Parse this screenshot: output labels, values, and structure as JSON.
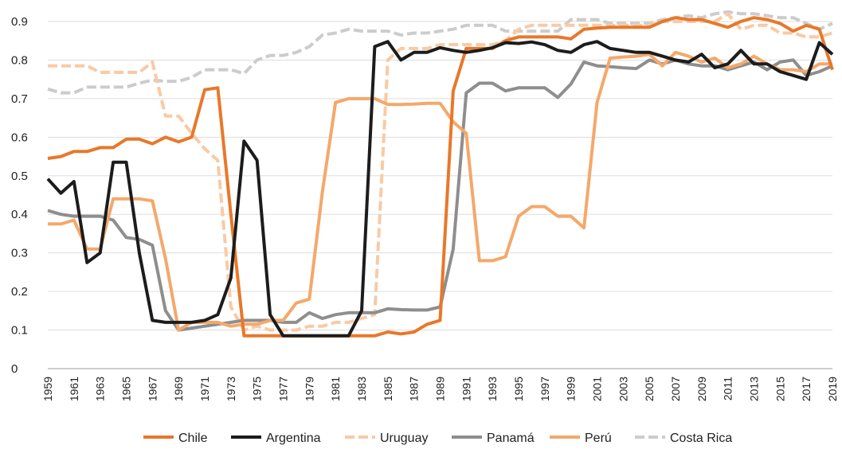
{
  "chart_data": {
    "type": "line",
    "title": "",
    "xlabel": "",
    "ylabel": "",
    "ylim": [
      0,
      0.9
    ],
    "yticks": [
      "0",
      "0.1",
      "0.2",
      "0.3",
      "0.4",
      "0.5",
      "0.6",
      "0.7",
      "0.8",
      "0.9"
    ],
    "xticks": [
      "1959",
      "1961",
      "1963",
      "1965",
      "1967",
      "1969",
      "1971",
      "1973",
      "1975",
      "1977",
      "1979",
      "1981",
      "1983",
      "1985",
      "1987",
      "1989",
      "1991",
      "1993",
      "1995",
      "1997",
      "1999",
      "2001",
      "2003",
      "2005",
      "2007",
      "2009",
      "2011",
      "2013",
      "2015",
      "2017",
      "2019"
    ],
    "grid": "horizontal",
    "legend_position": "bottom",
    "x": [
      1959,
      1960,
      1961,
      1962,
      1963,
      1964,
      1965,
      1966,
      1967,
      1968,
      1969,
      1970,
      1971,
      1972,
      1973,
      1974,
      1975,
      1976,
      1977,
      1978,
      1979,
      1980,
      1981,
      1982,
      1983,
      1984,
      1985,
      1986,
      1987,
      1988,
      1989,
      1990,
      1991,
      1992,
      1993,
      1994,
      1995,
      1996,
      1997,
      1998,
      1999,
      2000,
      2001,
      2002,
      2003,
      2004,
      2005,
      2006,
      2007,
      2008,
      2009,
      2010,
      2011,
      2012,
      2013,
      2014,
      2015,
      2016,
      2017,
      2018,
      2019
    ],
    "series": [
      {
        "name": "Chile",
        "color": "#e8782a",
        "dashed": false,
        "values": [
          0.545,
          0.55,
          0.563,
          0.563,
          0.573,
          0.573,
          0.595,
          0.595,
          0.583,
          0.6,
          0.588,
          0.6,
          0.723,
          0.728,
          0.4,
          0.085,
          0.085,
          0.085,
          0.085,
          0.085,
          0.085,
          0.085,
          0.085,
          0.085,
          0.085,
          0.085,
          0.095,
          0.09,
          0.095,
          0.115,
          0.125,
          0.72,
          0.83,
          0.83,
          0.83,
          0.85,
          0.86,
          0.86,
          0.86,
          0.86,
          0.855,
          0.88,
          0.883,
          0.885,
          0.885,
          0.885,
          0.885,
          0.9,
          0.91,
          0.905,
          0.905,
          0.895,
          0.885,
          0.9,
          0.91,
          0.905,
          0.895,
          0.875,
          0.89,
          0.88,
          0.775
        ]
      },
      {
        "name": "Argentina",
        "color": "#1c1c1c",
        "dashed": false,
        "values": [
          0.492,
          0.455,
          0.485,
          0.275,
          0.3,
          0.535,
          0.535,
          0.3,
          0.125,
          0.12,
          0.12,
          0.12,
          0.125,
          0.14,
          0.235,
          0.59,
          0.54,
          0.14,
          0.085,
          0.085,
          0.085,
          0.085,
          0.085,
          0.085,
          0.15,
          0.835,
          0.848,
          0.8,
          0.82,
          0.82,
          0.832,
          0.825,
          0.82,
          0.825,
          0.832,
          0.845,
          0.843,
          0.847,
          0.84,
          0.825,
          0.82,
          0.84,
          0.848,
          0.83,
          0.825,
          0.82,
          0.82,
          0.81,
          0.8,
          0.795,
          0.815,
          0.78,
          0.79,
          0.825,
          0.79,
          0.79,
          0.77,
          0.76,
          0.75,
          0.845,
          0.815
        ]
      },
      {
        "name": "Uruguay",
        "color": "#f8caa5",
        "dashed": true,
        "values": [
          0.785,
          0.785,
          0.785,
          0.785,
          0.768,
          0.768,
          0.768,
          0.768,
          0.795,
          0.655,
          0.655,
          0.61,
          0.57,
          0.54,
          0.16,
          0.1,
          0.11,
          0.1,
          0.1,
          0.1,
          0.11,
          0.11,
          0.12,
          0.12,
          0.13,
          0.14,
          0.8,
          0.83,
          0.83,
          0.83,
          0.84,
          0.84,
          0.84,
          0.84,
          0.84,
          0.85,
          0.88,
          0.89,
          0.89,
          0.89,
          0.89,
          0.89,
          0.89,
          0.89,
          0.89,
          0.89,
          0.89,
          0.9,
          0.9,
          0.9,
          0.9,
          0.9,
          0.92,
          0.88,
          0.89,
          0.89,
          0.87,
          0.87,
          0.86,
          0.86,
          0.87
        ]
      },
      {
        "name": "Panamá",
        "color": "#8e8e8e",
        "dashed": false,
        "values": [
          0.41,
          0.4,
          0.395,
          0.395,
          0.395,
          0.385,
          0.34,
          0.335,
          0.32,
          0.15,
          0.1,
          0.105,
          0.11,
          0.115,
          0.12,
          0.125,
          0.125,
          0.125,
          0.12,
          0.12,
          0.145,
          0.13,
          0.14,
          0.145,
          0.145,
          0.145,
          0.155,
          0.153,
          0.152,
          0.152,
          0.16,
          0.31,
          0.715,
          0.74,
          0.74,
          0.72,
          0.728,
          0.728,
          0.728,
          0.703,
          0.738,
          0.795,
          0.785,
          0.783,
          0.78,
          0.778,
          0.8,
          0.79,
          0.8,
          0.79,
          0.785,
          0.785,
          0.775,
          0.785,
          0.795,
          0.775,
          0.795,
          0.8,
          0.76,
          0.77,
          0.785
        ]
      },
      {
        "name": "Perú",
        "color": "#f4a86a",
        "dashed": false,
        "values": [
          0.375,
          0.375,
          0.385,
          0.31,
          0.31,
          0.44,
          0.44,
          0.44,
          0.435,
          0.285,
          0.1,
          0.12,
          0.12,
          0.12,
          0.11,
          0.115,
          0.115,
          0.125,
          0.125,
          0.17,
          0.18,
          0.46,
          0.69,
          0.7,
          0.7,
          0.7,
          0.685,
          0.685,
          0.686,
          0.688,
          0.688,
          0.64,
          0.61,
          0.28,
          0.28,
          0.29,
          0.395,
          0.42,
          0.42,
          0.395,
          0.395,
          0.365,
          0.69,
          0.805,
          0.808,
          0.81,
          0.815,
          0.785,
          0.82,
          0.81,
          0.795,
          0.805,
          0.78,
          0.79,
          0.81,
          0.79,
          0.775,
          0.775,
          0.77,
          0.79,
          0.79
        ]
      },
      {
        "name": "Costa Rica",
        "color": "#cccccc",
        "dashed": true,
        "values": [
          0.725,
          0.715,
          0.715,
          0.73,
          0.73,
          0.73,
          0.73,
          0.74,
          0.748,
          0.745,
          0.745,
          0.755,
          0.775,
          0.775,
          0.775,
          0.765,
          0.8,
          0.812,
          0.812,
          0.82,
          0.835,
          0.865,
          0.87,
          0.88,
          0.875,
          0.875,
          0.875,
          0.865,
          0.87,
          0.87,
          0.875,
          0.88,
          0.89,
          0.89,
          0.89,
          0.875,
          0.875,
          0.875,
          0.875,
          0.875,
          0.905,
          0.905,
          0.905,
          0.895,
          0.895,
          0.895,
          0.895,
          0.905,
          0.91,
          0.915,
          0.91,
          0.92,
          0.925,
          0.92,
          0.92,
          0.915,
          0.91,
          0.91,
          0.895,
          0.88,
          0.895
        ]
      }
    ]
  }
}
